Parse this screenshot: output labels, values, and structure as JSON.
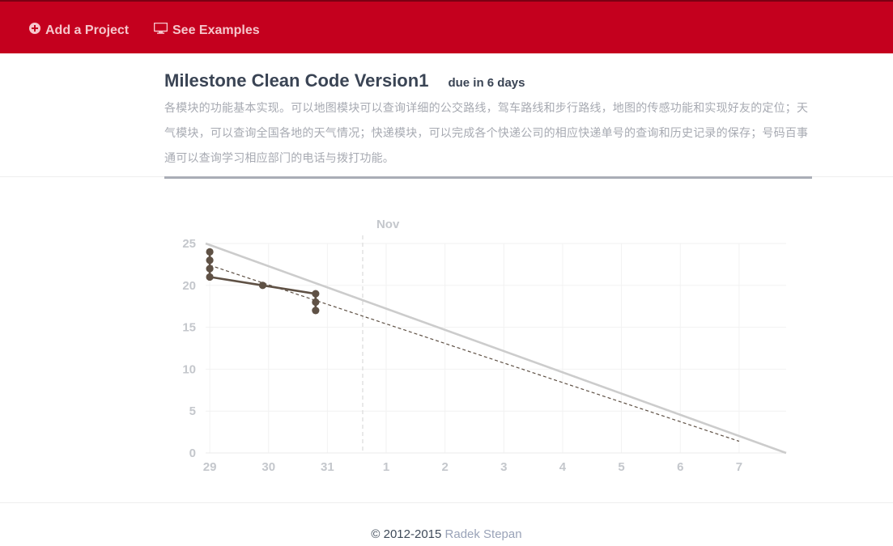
{
  "nav": {
    "add_project": "Add a Project",
    "see_examples": "See Examples",
    "add_icon": "plus-circle-icon",
    "examples_icon": "monitor-icon"
  },
  "milestone": {
    "title": "Milestone Clean Code Version1",
    "due": "due in 6 days",
    "description": "各模块的功能基本实现。可以地图模块可以查询详细的公交路线，驾车路线和步行路线，地图的传感功能和实现好友的定位；天气模块，可以查询全国各地的天气情况；快递模块，可以完成各个快递公司的相应快递单号的查询和历史记录的保存；号码百事通可以查询学习相应部门的电话与拨打功能。"
  },
  "colors": {
    "brand": "#c4001e",
    "actual_line": "#5f5145",
    "ideal_line": "#cccccc",
    "trend_line": "#5f5145",
    "month_marker": "#dddddd"
  },
  "chart_data": {
    "type": "line",
    "x_axis": "days",
    "x_tick_labels": [
      "29",
      "30",
      "31",
      "1",
      "2",
      "3",
      "4",
      "5",
      "6",
      "7"
    ],
    "x_range": [
      28.93,
      38.8
    ],
    "ylim": [
      0,
      25
    ],
    "y_ticks": [
      0,
      5,
      10,
      15,
      20,
      25
    ],
    "month_marker": {
      "label": "Nov",
      "x": 31.6
    },
    "grid": true,
    "series": [
      {
        "style": "actual",
        "points": [
          [
            29.0,
            24
          ],
          [
            29.0,
            23
          ],
          [
            29.0,
            22
          ],
          [
            29.0,
            21
          ],
          [
            29.9,
            20
          ],
          [
            30.8,
            19
          ],
          [
            30.8,
            18
          ],
          [
            30.8,
            17
          ]
        ]
      },
      {
        "style": "ideal",
        "points": [
          [
            28.93,
            25
          ],
          [
            38.8,
            0
          ]
        ]
      },
      {
        "style": "trend",
        "points": [
          [
            29.0,
            22.4
          ],
          [
            38.0,
            1.4
          ]
        ]
      }
    ]
  },
  "footer": {
    "copyright": "© 2012-2015",
    "author": "Radek Stepan"
  }
}
